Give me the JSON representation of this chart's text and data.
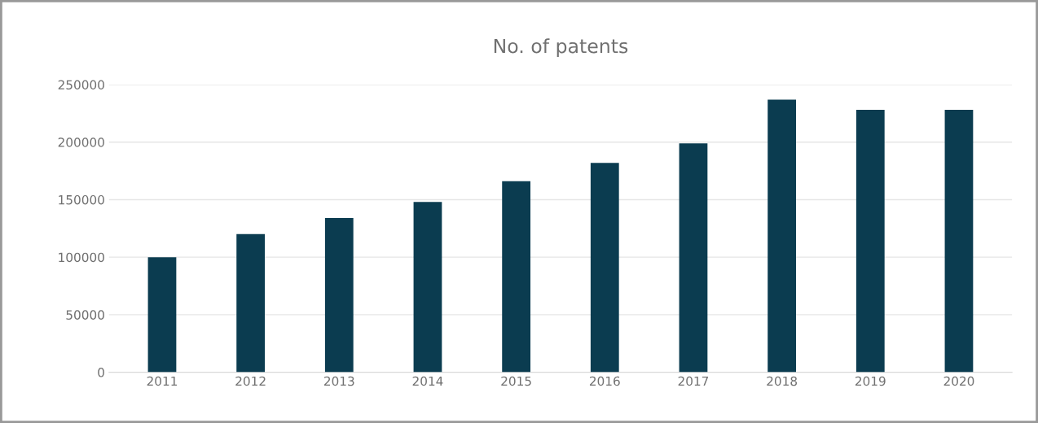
{
  "chart_data": {
    "type": "bar",
    "title": "No. of patents",
    "categories": [
      "2011",
      "2012",
      "2013",
      "2014",
      "2015",
      "2016",
      "2017",
      "2018",
      "2019",
      "2020"
    ],
    "values": [
      100000,
      120000,
      134000,
      148000,
      166000,
      182000,
      199000,
      237000,
      228000,
      228000
    ],
    "color": "#0b3c50",
    "ylim": [
      0,
      250000
    ],
    "yticks": [
      0,
      50000,
      100000,
      150000,
      200000,
      250000
    ],
    "grid": "y",
    "legend": false
  }
}
